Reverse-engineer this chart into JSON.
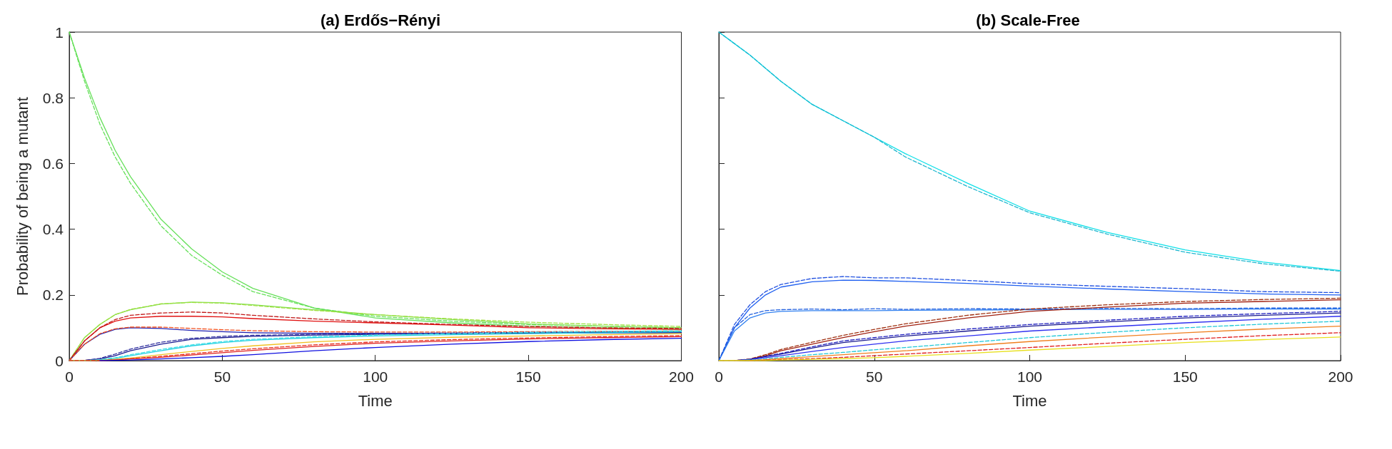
{
  "chart_data": [
    {
      "type": "line",
      "title": "(a) Erdős−Rényi",
      "xlabel": "Time",
      "ylabel": "Probability of being a mutant",
      "xlim": [
        0,
        200
      ],
      "xticks": [
        0,
        50,
        100,
        150,
        200
      ],
      "ylim": [
        0,
        1
      ],
      "yticks": [
        0,
        0.2,
        0.4,
        0.6,
        0.8,
        1
      ],
      "grid": false,
      "marker": "none",
      "x": [
        0,
        5,
        10,
        15,
        20,
        30,
        40,
        50,
        60,
        80,
        100,
        125,
        150,
        175,
        200
      ],
      "series": [
        {
          "color": "#66e05a",
          "line_style": "solid",
          "values": [
            1,
            0.86,
            0.74,
            0.64,
            0.56,
            0.43,
            0.34,
            0.27,
            0.22,
            0.16,
            0.13,
            0.115,
            0.105,
            0.1,
            0.095
          ]
        },
        {
          "color": "#66e05a",
          "line_style": "dashed",
          "values": [
            1,
            0.85,
            0.72,
            0.62,
            0.54,
            0.41,
            0.32,
            0.26,
            0.21,
            0.16,
            0.135,
            0.12,
            0.11,
            0.105,
            0.1
          ]
        },
        {
          "color": "#80e050",
          "line_style": "solid",
          "values": [
            0,
            0.07,
            0.11,
            0.14,
            0.155,
            0.172,
            0.178,
            0.176,
            0.17,
            0.155,
            0.14,
            0.125,
            0.112,
            0.105,
            0.1
          ]
        },
        {
          "color": "#a0e040",
          "line_style": "dashed",
          "values": [
            0,
            0.07,
            0.11,
            0.14,
            0.156,
            0.173,
            0.177,
            0.175,
            0.168,
            0.153,
            0.14,
            0.127,
            0.117,
            0.11,
            0.104
          ]
        },
        {
          "color": "#e01010",
          "line_style": "solid",
          "values": [
            0,
            0.06,
            0.1,
            0.12,
            0.13,
            0.135,
            0.135,
            0.133,
            0.128,
            0.12,
            0.115,
            0.108,
            0.1,
            0.097,
            0.095
          ]
        },
        {
          "color": "#c01818",
          "line_style": "dashed",
          "values": [
            0,
            0.06,
            0.1,
            0.125,
            0.138,
            0.145,
            0.148,
            0.145,
            0.138,
            0.127,
            0.118,
            0.11,
            0.104,
            0.1,
            0.098
          ]
        },
        {
          "color": "#2020b0",
          "line_style": "solid",
          "values": [
            0,
            0.05,
            0.08,
            0.095,
            0.1,
            0.098,
            0.092,
            0.088,
            0.085,
            0.083,
            0.083,
            0.083,
            0.084,
            0.085,
            0.085
          ]
        },
        {
          "color": "#f05020",
          "line_style": "dashed",
          "values": [
            0,
            0.05,
            0.082,
            0.097,
            0.102,
            0.102,
            0.098,
            0.094,
            0.091,
            0.088,
            0.087,
            0.087,
            0.088,
            0.089,
            0.09
          ]
        },
        {
          "color": "#1a1a90",
          "line_style": "solid",
          "values": [
            0,
            0.001,
            0.005,
            0.015,
            0.03,
            0.05,
            0.065,
            0.07,
            0.074,
            0.078,
            0.08,
            0.082,
            0.084,
            0.085,
            0.086
          ]
        },
        {
          "color": "#3030a0",
          "line_style": "dashed",
          "values": [
            0,
            0.001,
            0.007,
            0.02,
            0.035,
            0.056,
            0.068,
            0.074,
            0.077,
            0.08,
            0.082,
            0.084,
            0.086,
            0.087,
            0.088
          ]
        },
        {
          "color": "#20d0e0",
          "line_style": "solid",
          "values": [
            0,
            0,
            0.002,
            0.007,
            0.015,
            0.03,
            0.045,
            0.055,
            0.062,
            0.07,
            0.075,
            0.079,
            0.082,
            0.085,
            0.088
          ]
        },
        {
          "color": "#40e0e8",
          "line_style": "dashed",
          "values": [
            0,
            0,
            0.003,
            0.009,
            0.018,
            0.034,
            0.048,
            0.058,
            0.065,
            0.073,
            0.078,
            0.082,
            0.086,
            0.089,
            0.091
          ]
        },
        {
          "color": "#f0c020",
          "line_style": "solid",
          "values": [
            0,
            0,
            0.001,
            0.004,
            0.008,
            0.018,
            0.028,
            0.037,
            0.045,
            0.057,
            0.065,
            0.071,
            0.075,
            0.079,
            0.082
          ]
        },
        {
          "color": "#e02020",
          "line_style": "solid",
          "values": [
            null,
            null,
            0,
            0.002,
            0.005,
            0.01,
            0.017,
            0.024,
            0.031,
            0.043,
            0.053,
            0.06,
            0.066,
            0.07,
            0.073
          ]
        },
        {
          "color": "#e83020",
          "line_style": "dashed",
          "values": [
            0,
            0,
            0,
            0.002,
            0.006,
            0.013,
            0.021,
            0.029,
            0.036,
            0.048,
            0.057,
            0.064,
            0.069,
            0.073,
            0.076
          ]
        },
        {
          "color": "#1010e0",
          "line_style": "solid",
          "values": [
            null,
            null,
            0,
            0.001,
            0.002,
            0.005,
            0.009,
            0.013,
            0.018,
            0.03,
            0.04,
            0.05,
            0.058,
            0.064,
            0.068
          ]
        }
      ]
    },
    {
      "type": "line",
      "title": "(b) Scale-Free",
      "xlabel": "Time",
      "xlim": [
        0,
        200
      ],
      "xticks": [
        0,
        50,
        100,
        150,
        200
      ],
      "ylim": [
        0,
        1
      ],
      "yticks": [
        0,
        0.2,
        0.4,
        0.6,
        0.8,
        1
      ],
      "tick_labels": "x",
      "grid": false,
      "marker": "none",
      "x": [
        0,
        5,
        10,
        15,
        20,
        30,
        40,
        50,
        60,
        80,
        100,
        125,
        150,
        175,
        200
      ],
      "series": [
        {
          "color": "#10e0e8",
          "line_style": "solid",
          "values": [
            1,
            0.965,
            0.93,
            0.89,
            0.85,
            0.78,
            0.73,
            0.68,
            0.63,
            0.54,
            0.455,
            0.39,
            0.337,
            0.3,
            0.274
          ]
        },
        {
          "color": "#20b8d0",
          "line_style": "dashed",
          "values": [
            1,
            0.965,
            0.93,
            0.89,
            0.85,
            0.78,
            0.73,
            0.68,
            0.62,
            0.53,
            0.45,
            0.385,
            0.33,
            0.295,
            0.272
          ]
        },
        {
          "color": "#2060f0",
          "line_style": "solid",
          "values": [
            0,
            0.1,
            0.16,
            0.2,
            0.224,
            0.24,
            0.245,
            0.244,
            0.241,
            0.235,
            0.227,
            0.218,
            0.21,
            0.203,
            0.2
          ]
        },
        {
          "color": "#2050e0",
          "line_style": "dashed",
          "values": [
            0,
            0.11,
            0.17,
            0.21,
            0.232,
            0.25,
            0.256,
            0.252,
            0.252,
            0.244,
            0.234,
            0.226,
            0.219,
            0.21,
            0.207
          ]
        },
        {
          "color": "#3080f0",
          "line_style": "solid",
          "values": [
            0,
            0.09,
            0.13,
            0.145,
            0.15,
            0.152,
            0.152,
            0.152,
            0.153,
            0.154,
            0.155,
            0.156,
            0.156,
            0.157,
            0.157
          ]
        },
        {
          "color": "#2060e0",
          "line_style": "dashed",
          "values": [
            0,
            0.1,
            0.14,
            0.152,
            0.155,
            0.157,
            0.155,
            0.158,
            0.156,
            0.158,
            0.157,
            0.159,
            0.158,
            0.16,
            0.16
          ]
        },
        {
          "color": "#a02010",
          "line_style": "solid",
          "values": [
            0,
            0,
            0.004,
            0.015,
            0.03,
            0.05,
            0.07,
            0.088,
            0.105,
            0.13,
            0.15,
            0.163,
            0.175,
            0.18,
            0.185
          ]
        },
        {
          "color": "#a03010",
          "line_style": "dashed",
          "values": [
            0,
            0,
            0.005,
            0.018,
            0.034,
            0.056,
            0.077,
            0.095,
            0.112,
            0.138,
            0.157,
            0.17,
            0.18,
            0.186,
            0.19
          ]
        },
        {
          "color": "#1a1a90",
          "line_style": "solid",
          "values": [
            0,
            0,
            0.004,
            0.012,
            0.02,
            0.038,
            0.055,
            0.065,
            0.075,
            0.09,
            0.105,
            0.118,
            0.13,
            0.138,
            0.145
          ]
        },
        {
          "color": "#2020c0",
          "line_style": "dashed",
          "values": [
            0,
            0,
            0.004,
            0.013,
            0.022,
            0.042,
            0.06,
            0.07,
            0.08,
            0.096,
            0.11,
            0.123,
            0.135,
            0.143,
            0.15
          ]
        },
        {
          "color": "#3030f0",
          "line_style": "solid",
          "values": [
            0,
            0,
            0.003,
            0.009,
            0.015,
            0.028,
            0.04,
            0.05,
            0.06,
            0.075,
            0.09,
            0.103,
            0.115,
            0.126,
            0.135
          ]
        },
        {
          "color": "#20c8d8",
          "line_style": "dashed",
          "values": [
            0,
            0,
            0.002,
            0.005,
            0.01,
            0.018,
            0.025,
            0.033,
            0.04,
            0.055,
            0.07,
            0.086,
            0.1,
            0.111,
            0.12
          ]
        },
        {
          "color": "#f08020",
          "line_style": "solid",
          "values": [
            0,
            0,
            0.001,
            0.003,
            0.006,
            0.012,
            0.018,
            0.024,
            0.03,
            0.045,
            0.058,
            0.072,
            0.085,
            0.096,
            0.105
          ]
        },
        {
          "color": "#e02020",
          "line_style": "dashed",
          "values": [
            null,
            null,
            0,
            0.001,
            0.003,
            0.006,
            0.01,
            0.015,
            0.02,
            0.03,
            0.04,
            0.053,
            0.065,
            0.076,
            0.085
          ]
        },
        {
          "color": "#e8e020",
          "line_style": "solid",
          "values": [
            0,
            0,
            0,
            0,
            0.002,
            0.004,
            0.006,
            0.009,
            0.013,
            0.022,
            0.032,
            0.043,
            0.055,
            0.064,
            0.072
          ]
        }
      ]
    }
  ]
}
